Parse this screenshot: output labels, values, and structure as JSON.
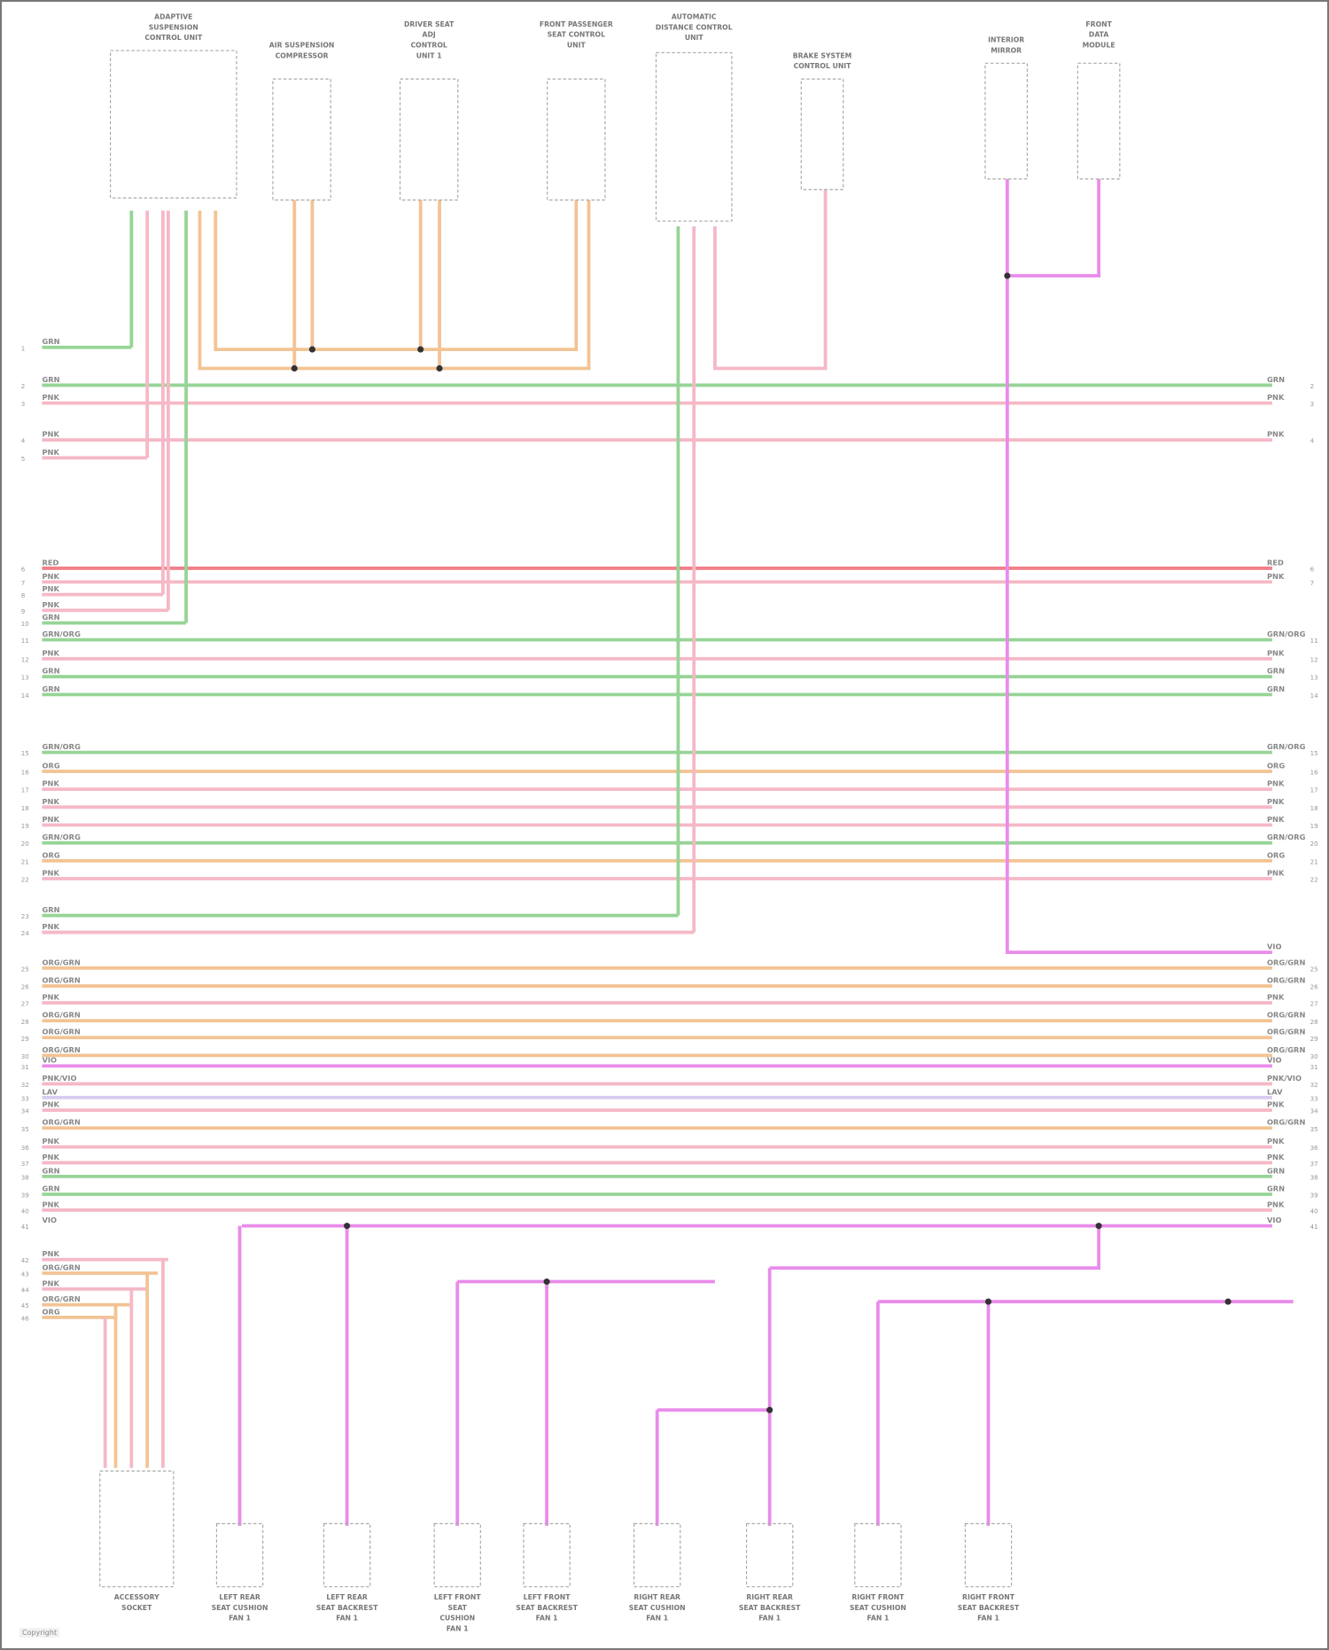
{
  "top_components": [
    {
      "label": [
        "ADAPTIVE",
        "SUSPENSION",
        "CONTROL UNIT"
      ],
      "pins": 6
    },
    {
      "label": [
        "AIR SUSPENSION",
        "COMPRESSOR"
      ],
      "pins": 2
    },
    {
      "label": [
        "DRIVER SEAT",
        "ADJ",
        "CONTROL",
        "UNIT 1"
      ],
      "pins": 2
    },
    {
      "label": [
        "FRONT PASSENGER",
        "SEAT CONTROL",
        "UNIT"
      ],
      "pins": 2
    },
    {
      "label": [
        "AUTOMATIC",
        "DISTANCE CONTROL",
        "UNIT"
      ],
      "pins": 3
    },
    {
      "label": [
        "BRAKE SYSTEM",
        "CONTROL UNIT"
      ],
      "pins": 1
    },
    {
      "label": [
        "INTERIOR",
        "MIRROR"
      ],
      "pins": 1
    },
    {
      "label": [
        "FRONT",
        "DATA",
        "MODULE"
      ],
      "pins": 1
    }
  ],
  "bottom_components": [
    {
      "label": [
        "ACCESSORY",
        "SOCKET"
      ]
    },
    {
      "label": [
        "LEFT REAR",
        "SEAT CUSHION",
        "FAN 1"
      ]
    },
    {
      "label": [
        "LEFT REAR",
        "SEAT BACKREST",
        "FAN 1"
      ]
    },
    {
      "label": [
        "LEFT FRONT",
        "SEAT",
        "CUSHION",
        "FAN 1"
      ]
    },
    {
      "label": [
        "LEFT FRONT",
        "SEAT BACKREST",
        "FAN 1"
      ]
    },
    {
      "label": [
        "RIGHT REAR",
        "SEAT CUSHION",
        "FAN 1"
      ]
    },
    {
      "label": [
        "RIGHT REAR",
        "SEAT BACKREST",
        "FAN 1"
      ]
    },
    {
      "label": [
        "RIGHT FRONT",
        "SEAT CUSHION",
        "FAN 1"
      ]
    },
    {
      "label": [
        "RIGHT FRONT",
        "SEAT BACKREST",
        "FAN 1"
      ]
    }
  ],
  "wire_colors": {
    "GRN": "#97d497",
    "PNK": "#f5b8c6",
    "RED": "#f0808a",
    "ORG": "#f3c394",
    "VIO": "#e98ceb",
    "LAV": "#d9ccf0"
  },
  "wires": [
    {
      "n": "1",
      "code": "GRN",
      "color": "GRN"
    },
    {
      "n": "2",
      "code": "GRN",
      "color": "GRN"
    },
    {
      "n": "3",
      "code": "PNK",
      "color": "PNK"
    },
    {
      "n": "4",
      "code": "PNK",
      "color": "PNK"
    },
    {
      "n": "5",
      "code": "PNK",
      "color": "PNK"
    },
    {
      "n": "6",
      "code": "RED",
      "color": "RED"
    },
    {
      "n": "7",
      "code": "PNK",
      "color": "PNK"
    },
    {
      "n": "8",
      "code": "PNK",
      "color": "PNK"
    },
    {
      "n": "9",
      "code": "PNK",
      "color": "PNK"
    },
    {
      "n": "10",
      "code": "GRN",
      "color": "GRN"
    },
    {
      "n": "11",
      "code": "GRN/ORG",
      "color": "GRN"
    },
    {
      "n": "12",
      "code": "PNK",
      "color": "PNK"
    },
    {
      "n": "13",
      "code": "GRN",
      "color": "GRN"
    },
    {
      "n": "14",
      "code": "GRN",
      "color": "GRN"
    },
    {
      "n": "15",
      "code": "GRN/ORG",
      "color": "GRN"
    },
    {
      "n": "16",
      "code": "ORG",
      "color": "ORG"
    },
    {
      "n": "17",
      "code": "PNK",
      "color": "PNK"
    },
    {
      "n": "18",
      "code": "PNK",
      "color": "PNK"
    },
    {
      "n": "19",
      "code": "PNK",
      "color": "PNK"
    },
    {
      "n": "20",
      "code": "GRN/ORG",
      "color": "GRN"
    },
    {
      "n": "21",
      "code": "ORG",
      "color": "ORG"
    },
    {
      "n": "22",
      "code": "PNK",
      "color": "PNK"
    },
    {
      "n": "23",
      "code": "GRN",
      "color": "GRN"
    },
    {
      "n": "24",
      "code": "PNK",
      "color": "PNK"
    },
    {
      "n": "25",
      "code": "ORG/GRN",
      "color": "ORG"
    },
    {
      "n": "26",
      "code": "ORG/GRN",
      "color": "ORG"
    },
    {
      "n": "27",
      "code": "PNK",
      "color": "PNK"
    },
    {
      "n": "28",
      "code": "ORG/GRN",
      "color": "ORG"
    },
    {
      "n": "29",
      "code": "ORG/GRN",
      "color": "ORG"
    },
    {
      "n": "30",
      "code": "ORG/GRN",
      "color": "ORG"
    },
    {
      "n": "31",
      "code": "VIO",
      "color": "VIO"
    },
    {
      "n": "32",
      "code": "PNK/VIO",
      "color": "PNK"
    },
    {
      "n": "33",
      "code": "LAV",
      "color": "LAV"
    },
    {
      "n": "34",
      "code": "PNK",
      "color": "PNK"
    },
    {
      "n": "35",
      "code": "ORG/GRN",
      "color": "ORG"
    },
    {
      "n": "36",
      "code": "PNK",
      "color": "PNK"
    },
    {
      "n": "37",
      "code": "PNK",
      "color": "PNK"
    },
    {
      "n": "38",
      "code": "GRN",
      "color": "GRN"
    },
    {
      "n": "39",
      "code": "GRN",
      "color": "GRN"
    },
    {
      "n": "40",
      "code": "PNK",
      "color": "PNK"
    },
    {
      "n": "41",
      "code": "VIO",
      "color": "VIO"
    },
    {
      "n": "42",
      "code": "PNK",
      "color": "PNK"
    },
    {
      "n": "43",
      "code": "ORG/GRN",
      "color": "ORG"
    },
    {
      "n": "44",
      "code": "PNK",
      "color": "PNK"
    },
    {
      "n": "45",
      "code": "ORG/GRN",
      "color": "ORG"
    },
    {
      "n": "46",
      "code": "ORG",
      "color": "ORG"
    }
  ],
  "footer": "Copyright"
}
